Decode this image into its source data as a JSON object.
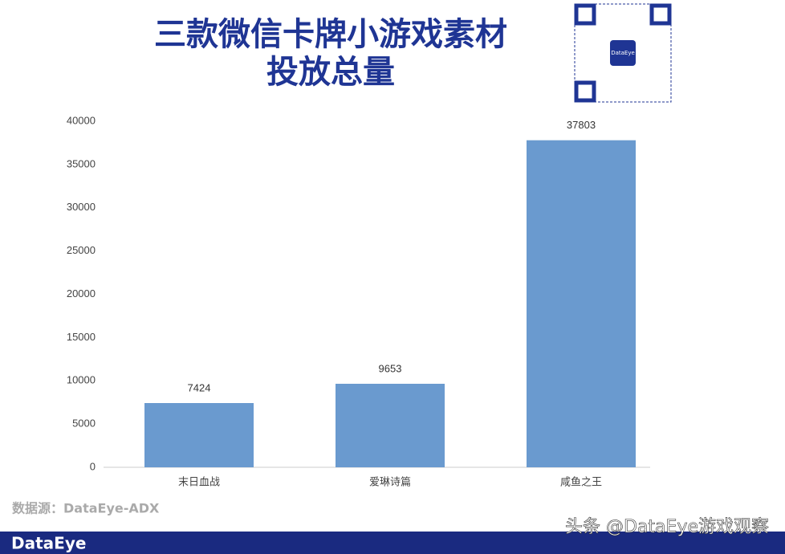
{
  "chart_data": {
    "type": "bar",
    "title": [
      "三款微信卡牌小游戏素材",
      "投放总量"
    ],
    "categories": [
      "末日血战",
      "爱琳诗篇",
      "咸鱼之王"
    ],
    "values": [
      7424,
      9653,
      37803
    ],
    "color": "#6a9acf",
    "ylim": [
      0,
      40000
    ],
    "yticks": [
      0,
      5000,
      10000,
      15000,
      20000,
      25000,
      30000,
      35000,
      40000
    ],
    "grid": false
  },
  "source": "数据源：DataEye-ADX",
  "qr_label": "DataEye",
  "footer": {
    "logo": "DataEye",
    "watermark": "头条 @DataEye游戏观察"
  }
}
